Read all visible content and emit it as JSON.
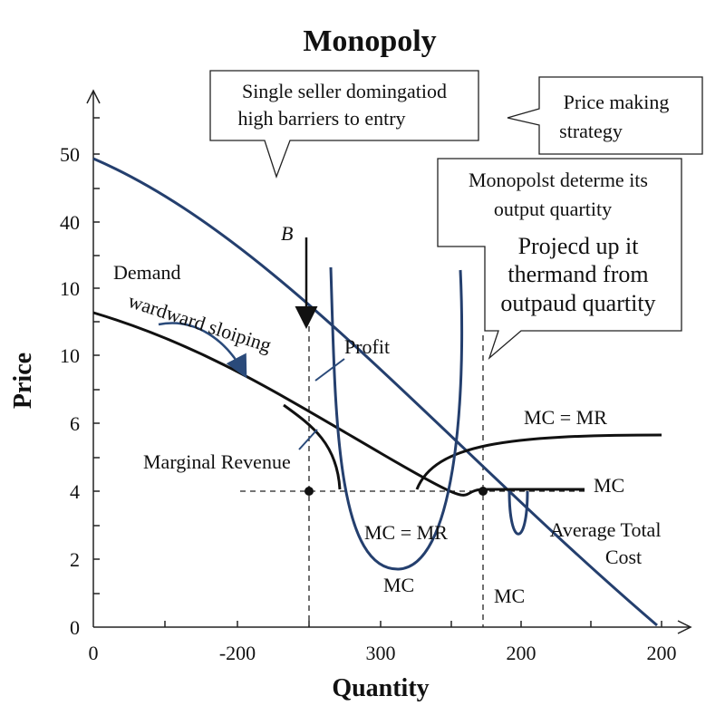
{
  "title": "Monopoly",
  "axes": {
    "y_label": "Price",
    "x_label": "Quantity",
    "y_ticks": [
      "0",
      "2",
      "4",
      "6",
      "10",
      "10",
      "40",
      "50"
    ],
    "x_ticks": [
      "0",
      "-200",
      "300",
      "200",
      "200"
    ]
  },
  "callouts": [
    {
      "lines": [
        "Single seller domingatiod",
        "high barriers to entry"
      ]
    },
    {
      "lines": [
        "Price making",
        "strategy"
      ]
    },
    {
      "lines": [
        "Monopolst determe its",
        "output quartity",
        "Projecd up it",
        "thermand from",
        "outpaud quartity"
      ]
    }
  ],
  "labels": {
    "b": "B",
    "demand": "Demand",
    "sloping": "wardward sloiping",
    "profit": "Profit",
    "marginal_revenue": "Marginal Revenue",
    "mc_mr_right": "MC = MR",
    "mc_right": "MC",
    "mc_mr_inner": "MC = MR",
    "mc_bottom": "MC",
    "mc_lower_right": "MC",
    "atc": [
      "Average Total",
      "Cost"
    ]
  }
}
